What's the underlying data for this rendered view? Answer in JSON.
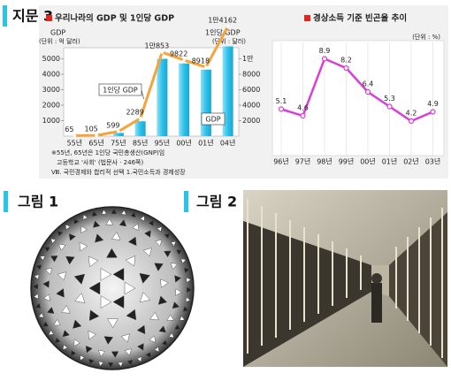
{
  "section_label": "지문 3",
  "chart_data": [
    {
      "type": "bar",
      "title": "우리나라의 GDP 및 1인당 GDP",
      "y_label": "GDP",
      "y_unit": "(단위 : 억 달러)",
      "y2_label": "1인당 GDP",
      "y2_unit": "(단위 : 달러)",
      "categories": [
        "55년",
        "65년",
        "75년",
        "85년",
        "95년",
        "00년",
        "01년",
        "04년"
      ],
      "series": [
        {
          "name": "GDP",
          "color": "#2ec1ea",
          "values": [
            14,
            30,
            210,
            960,
            5000,
            4700,
            4300,
            5800
          ]
        },
        {
          "name": "1인당 GDP",
          "color": "#f5a33a",
          "axis": "y2",
          "values": [
            65,
            105,
            599,
            2289,
            10853,
            9822,
            8918,
            14162
          ],
          "value_labels": [
            "65",
            "105",
            "599",
            "2289",
            "1만853",
            "9822",
            "8918",
            "1만4162"
          ]
        }
      ],
      "ylim": [
        0,
        7200
      ],
      "yticks": [
        1000,
        2000,
        3000,
        4000,
        5000
      ],
      "y2lim": [
        0,
        14400
      ],
      "y2ticks": [
        2000,
        4000,
        6000,
        8000,
        {
          "value": 10000,
          "label": "1만"
        }
      ],
      "notes": [
        "※55년, 65년은 1인당 국민총생산(GNP)임",
        "고등학교 '사회' (법문사 · 246쪽)",
        "Ⅷ. 국민경제와 합리적 선택 1.국민소득과 경제성장"
      ]
    },
    {
      "type": "line",
      "title": "경상소득 기준 빈곤율 추이",
      "unit": "(단위 : %)",
      "categories": [
        "96년",
        "97년",
        "98년",
        "99년",
        "00년",
        "01년",
        "02년",
        "03년"
      ],
      "values": [
        5.1,
        4.6,
        8.9,
        8.2,
        6.4,
        5.3,
        4.2,
        4.9
      ],
      "color": "#d93fd6",
      "ylim": [
        2,
        10
      ]
    }
  ],
  "figures": [
    {
      "label": "그림 1"
    },
    {
      "label": "그림 2"
    }
  ]
}
